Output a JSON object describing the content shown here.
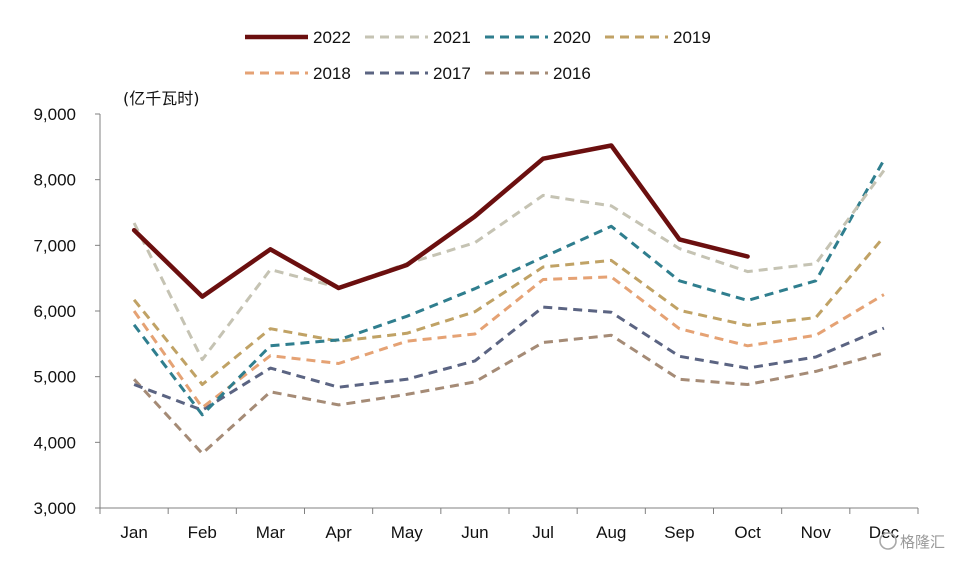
{
  "chart_data": {
    "type": "line",
    "title": "",
    "xlabel": "",
    "ylabel": "(亿千瓦时)",
    "ylim": [
      3000,
      9000
    ],
    "yticks": [
      3000,
      4000,
      5000,
      6000,
      7000,
      8000,
      9000
    ],
    "ytick_labels": [
      "3,000",
      "4,000",
      "5,000",
      "6,000",
      "7,000",
      "8,000",
      "9,000"
    ],
    "grid": false,
    "legend_position": "top",
    "categories": [
      "Jan",
      "Feb",
      "Mar",
      "Apr",
      "May",
      "Jun",
      "Jul",
      "Aug",
      "Sep",
      "Oct",
      "Nov",
      "Dec"
    ],
    "series": [
      {
        "name": "2022",
        "color": "#6b0f0f",
        "style": "solid",
        "values": [
          7230,
          6220,
          6940,
          6350,
          6700,
          7440,
          8320,
          8520,
          7090,
          6830,
          null,
          null
        ]
      },
      {
        "name": "2021",
        "color": "#c5c3b3",
        "style": "dashed",
        "values": [
          7340,
          5260,
          6630,
          6360,
          6720,
          7040,
          7760,
          7600,
          6950,
          6600,
          6720,
          8140
        ]
      },
      {
        "name": "2020",
        "color": "#2f7e8e",
        "style": "dashed",
        "values": [
          5790,
          4420,
          5470,
          5560,
          5920,
          6340,
          6820,
          7290,
          6460,
          6160,
          6460,
          8300
        ]
      },
      {
        "name": "2019",
        "color": "#c0a265",
        "style": "dashed",
        "values": [
          6170,
          4880,
          5730,
          5540,
          5660,
          5990,
          6670,
          6770,
          6010,
          5780,
          5900,
          7130
        ]
      },
      {
        "name": "2018",
        "color": "#e5a274",
        "style": "dashed",
        "values": [
          6000,
          4530,
          5320,
          5200,
          5540,
          5650,
          6480,
          6520,
          5730,
          5470,
          5630,
          6250
        ]
      },
      {
        "name": "2017",
        "color": "#5b6482",
        "style": "dashed",
        "values": [
          4880,
          4490,
          5130,
          4840,
          4960,
          5240,
          6060,
          5980,
          5310,
          5130,
          5300,
          5740
        ]
      },
      {
        "name": "2016",
        "color": "#a58b76",
        "style": "dashed",
        "values": [
          4960,
          3830,
          4770,
          4570,
          4730,
          4920,
          5520,
          5630,
          4960,
          4880,
          5080,
          5360
        ]
      }
    ]
  },
  "watermark": "格隆汇"
}
